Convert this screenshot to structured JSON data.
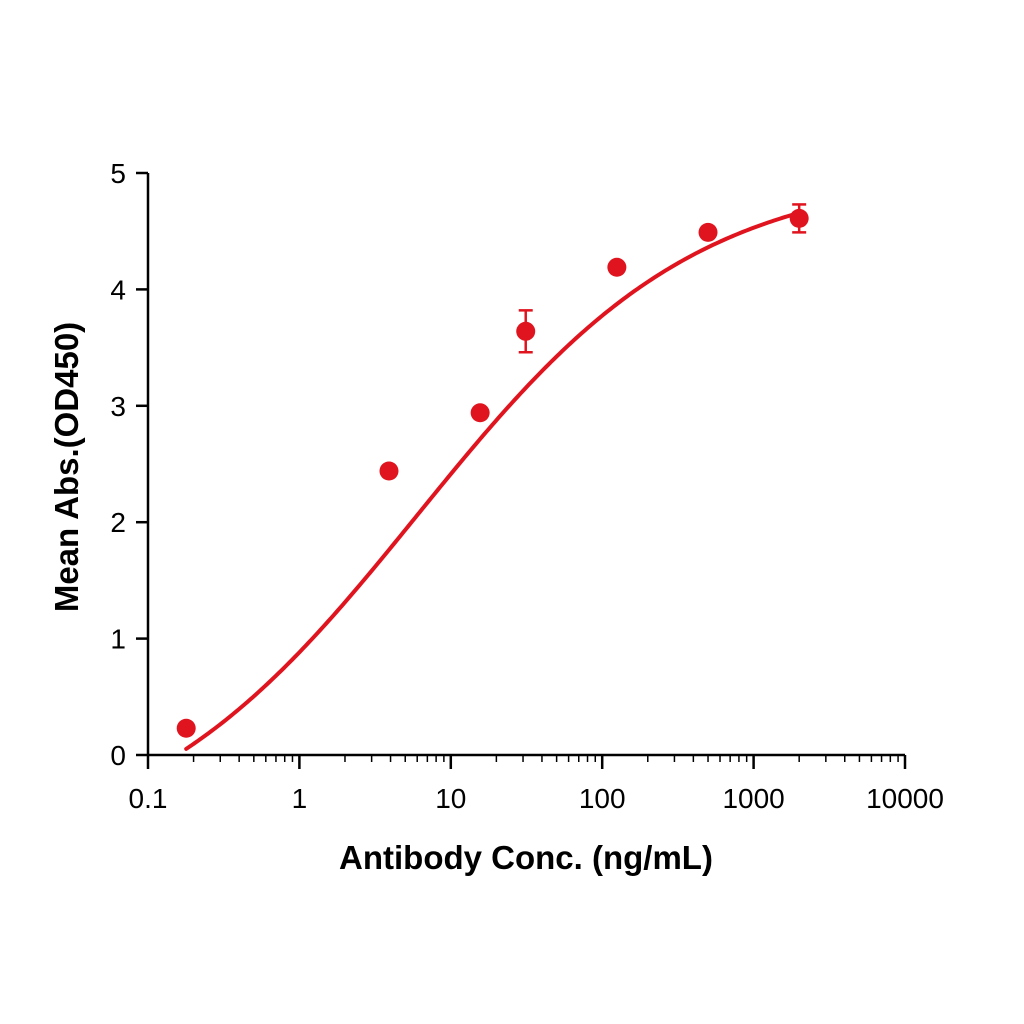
{
  "chart_data": {
    "type": "scatter",
    "title": "",
    "xlabel": "Antibody Conc. (ng/mL)",
    "ylabel": "Mean Abs.(OD450)",
    "x_scale": "log",
    "xlim": [
      0.1,
      10000
    ],
    "ylim": [
      0,
      5
    ],
    "x_ticks": [
      0.1,
      1,
      10,
      100,
      1000,
      10000
    ],
    "x_tick_labels": [
      "0.1",
      "1",
      "10",
      "100",
      "1000",
      "10000"
    ],
    "y_ticks": [
      0,
      1,
      2,
      3,
      4,
      5
    ],
    "y_tick_labels": [
      "0",
      "1",
      "2",
      "3",
      "4",
      "5"
    ],
    "grid": false,
    "legend": "none",
    "color": "#e0141e",
    "points": [
      {
        "x": 0.1788,
        "y": 0.23,
        "err": 0
      },
      {
        "x": 3.906,
        "y": 2.44,
        "err": 0
      },
      {
        "x": 15.625,
        "y": 2.94,
        "err": 0
      },
      {
        "x": 31.25,
        "y": 3.64,
        "err": 0.18
      },
      {
        "x": 125,
        "y": 4.19,
        "err": 0
      },
      {
        "x": 500,
        "y": 4.49,
        "err": 0
      },
      {
        "x": 2000,
        "y": 4.61,
        "err": 0.12
      }
    ],
    "fit_curve": {
      "type": "4PL",
      "bottom": -0.9,
      "top": 5.02,
      "ec50": 6.0,
      "hill": 0.47,
      "x_start": 0.1788,
      "x_end": 2000
    }
  }
}
